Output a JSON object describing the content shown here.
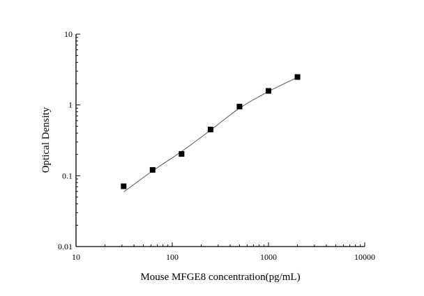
{
  "chart_data": {
    "type": "scatter",
    "title": "",
    "xlabel": "Mouse MFGE8 concentration(pg/mL)",
    "ylabel": "Optical Density",
    "xscale": "log",
    "yscale": "log",
    "xlim": [
      10,
      10000
    ],
    "ylim": [
      0.01,
      10
    ],
    "xticks": [
      10,
      100,
      1000,
      10000
    ],
    "xtick_labels": [
      "10",
      "100",
      "1000",
      "10000"
    ],
    "yticks": [
      0.01,
      0.1,
      1,
      10
    ],
    "ytick_labels": [
      "0.01",
      "0.1",
      "1",
      "10"
    ],
    "grid": false,
    "marker": "square",
    "marker_color": "#000000",
    "line_color": "#555555",
    "points": {
      "x": [
        31.25,
        62.5,
        125,
        250,
        500,
        1000,
        2000
      ],
      "y": [
        0.071,
        0.121,
        0.203,
        0.45,
        0.948,
        1.58,
        2.48
      ]
    },
    "fit_curve": {
      "x": [
        31.25,
        62.5,
        125,
        250,
        500,
        1000,
        2000
      ],
      "y": [
        0.059,
        0.117,
        0.22,
        0.44,
        0.9,
        1.55,
        2.45
      ]
    }
  }
}
